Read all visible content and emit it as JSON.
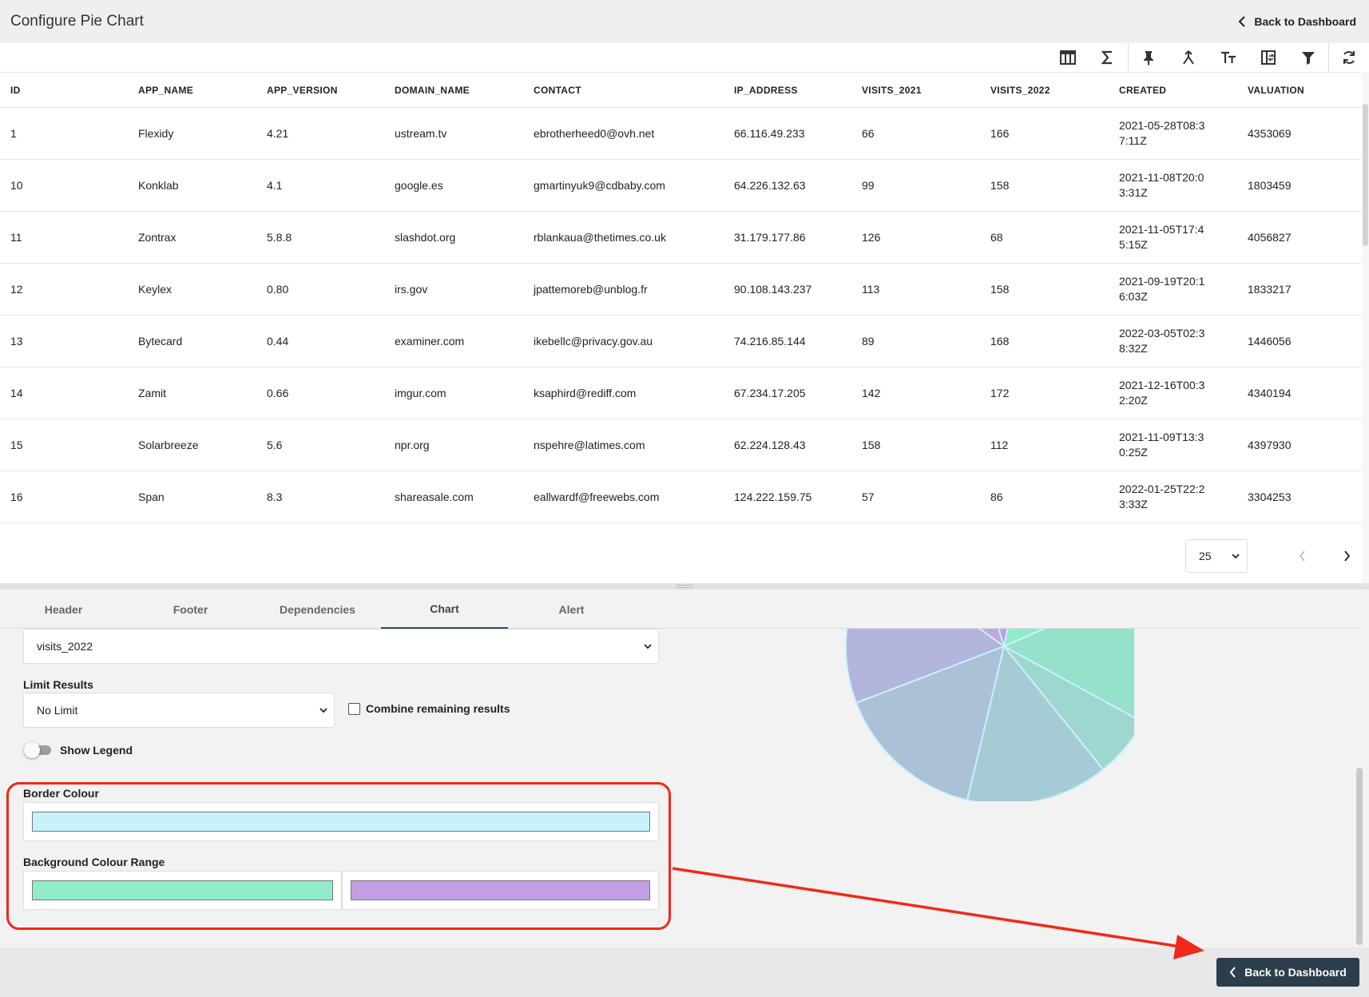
{
  "header": {
    "title": "Configure Pie Chart",
    "back_label": "Back to Dashboard"
  },
  "toolbar": {
    "icons": [
      "table-icon",
      "sigma-icon",
      "pin-icon",
      "merge-icon",
      "text-size-icon",
      "swap-columns-icon",
      "filter-icon",
      "refresh-icon"
    ]
  },
  "table": {
    "columns": [
      "ID",
      "APP_NAME",
      "APP_VERSION",
      "DOMAIN_NAME",
      "CONTACT",
      "IP_ADDRESS",
      "VISITS_2021",
      "VISITS_2022",
      "CREATED",
      "VALUATION"
    ],
    "rows": [
      [
        "1",
        "Flexidy",
        "4.21",
        "ustream.tv",
        "ebrotherheed0@ovh.net",
        "66.116.49.233",
        "66",
        "166",
        "2021-05-28T08:37:11Z",
        "4353069"
      ],
      [
        "10",
        "Konklab",
        "4.1",
        "google.es",
        "gmartinyuk9@cdbaby.com",
        "64.226.132.63",
        "99",
        "158",
        "2021-11-08T20:03:31Z",
        "1803459"
      ],
      [
        "11",
        "Zontrax",
        "5.8.8",
        "slashdot.org",
        "rblankaua@thetimes.co.uk",
        "31.179.177.86",
        "126",
        "68",
        "2021-11-05T17:45:15Z",
        "4056827"
      ],
      [
        "12",
        "Keylex",
        "0.80",
        "irs.gov",
        "jpattemoreb@unblog.fr",
        "90.108.143.237",
        "113",
        "158",
        "2021-09-19T20:16:03Z",
        "1833217"
      ],
      [
        "13",
        "Bytecard",
        "0.44",
        "examiner.com",
        "ikebellc@privacy.gov.au",
        "74.216.85.144",
        "89",
        "168",
        "2022-03-05T02:38:32Z",
        "1446056"
      ],
      [
        "14",
        "Zamit",
        "0.66",
        "imgur.com",
        "ksaphird@rediff.com",
        "67.234.17.205",
        "142",
        "172",
        "2021-12-16T00:32:20Z",
        "4340194"
      ],
      [
        "15",
        "Solarbreeze",
        "5.6",
        "npr.org",
        "nspehre@latimes.com",
        "62.224.128.43",
        "158",
        "112",
        "2021-11-09T13:30:25Z",
        "4397930"
      ],
      [
        "16",
        "Span",
        "8.3",
        "shareasale.com",
        "eallwardf@freewebs.com",
        "124.222.159.75",
        "57",
        "86",
        "2022-01-25T22:23:33Z",
        "3304253"
      ]
    ]
  },
  "pager": {
    "page_size": "25"
  },
  "tabs": [
    "Header",
    "Footer",
    "Dependencies",
    "Chart",
    "Alert"
  ],
  "active_tab": "Chart",
  "chart_config": {
    "value_field": "visits_2022",
    "limit_label": "Limit Results",
    "limit_value": "No Limit",
    "combine_label": "Combine remaining results",
    "legend_label": "Show Legend",
    "border_colour_label": "Border Colour",
    "border_colour": "#c8f1fa",
    "background_range_label": "Background Colour Range",
    "background_start": "#8fecc8",
    "background_end": "#c29fe4"
  },
  "footer": {
    "back_label": "Back to Dashboard"
  },
  "colors": {
    "annotation": "#ee2a1b",
    "footer_button": "#2c3e4c",
    "pie_start": "#8fecc8",
    "pie_end": "#c29fe4",
    "pie_border": "#c8f1fa"
  }
}
